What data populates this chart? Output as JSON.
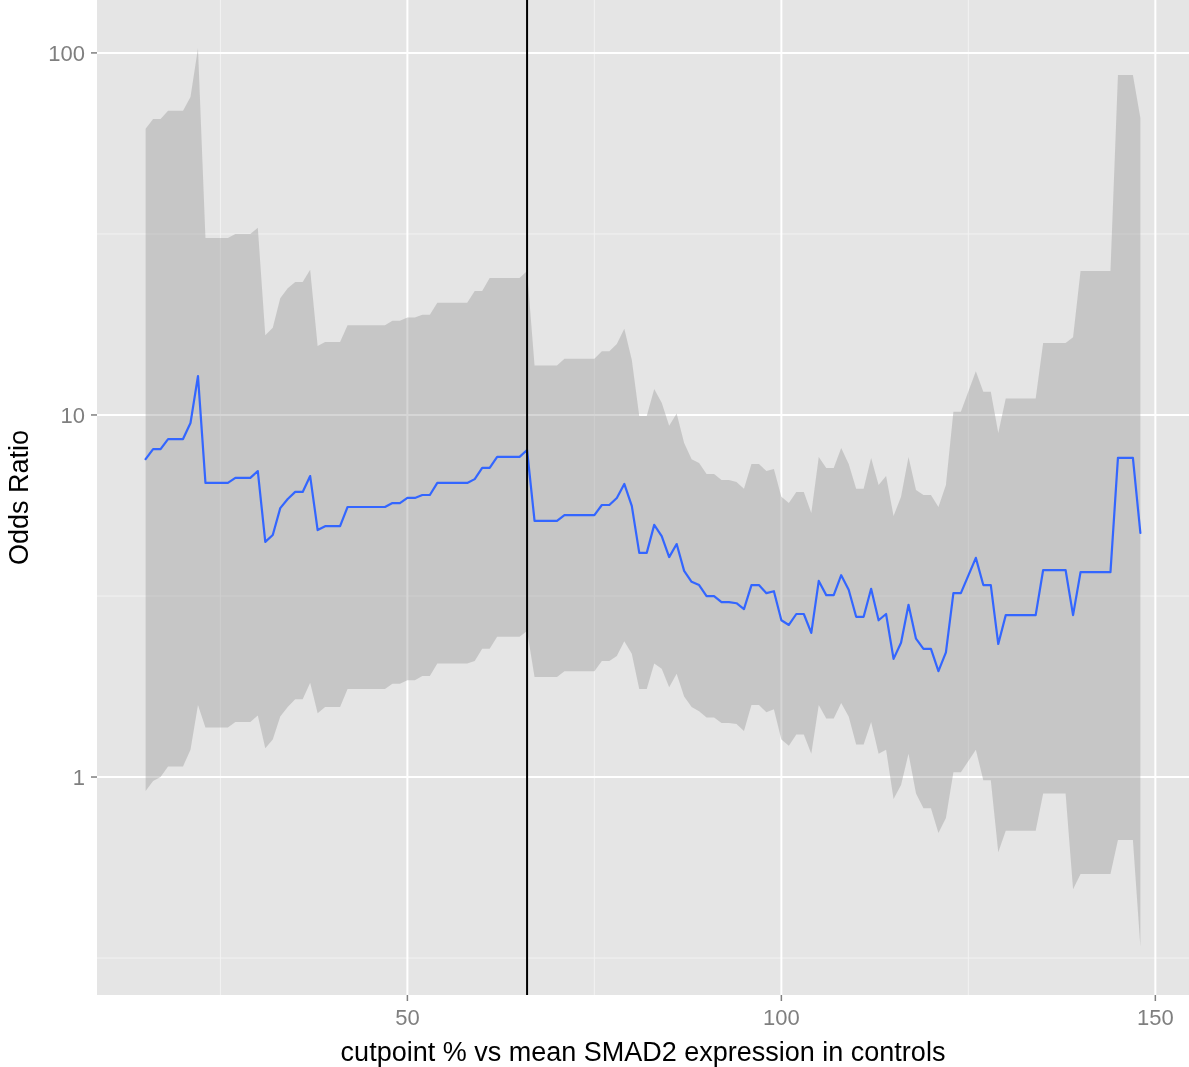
{
  "chart_data": {
    "type": "line",
    "xlabel": "cutpoint % vs mean SMAD2 expression in controls",
    "ylabel": "Odds Ratio",
    "x": [
      15,
      16,
      17,
      18,
      20,
      21,
      22,
      23,
      26,
      27,
      29,
      30,
      31,
      32,
      33,
      34,
      35,
      36,
      37,
      38,
      39,
      41,
      42,
      47,
      48,
      49,
      50,
      51,
      52,
      53,
      54,
      58,
      59,
      60,
      61,
      62,
      65,
      66,
      67,
      70,
      71,
      75,
      76,
      77,
      78,
      79,
      80,
      81,
      82,
      83,
      84,
      85,
      86,
      87,
      88,
      89,
      90,
      91,
      92,
      93,
      94,
      95,
      96,
      97,
      98,
      99,
      100,
      101,
      102,
      103,
      104,
      105,
      106,
      107,
      108,
      109,
      110,
      111,
      112,
      113,
      114,
      115,
      116,
      117,
      118,
      119,
      120,
      121,
      122,
      123,
      124,
      126,
      127,
      128,
      129,
      130,
      134,
      135,
      138,
      139,
      140,
      144,
      145,
      147,
      148
    ],
    "series": [
      {
        "color": "#3366ff",
        "values": [
          7.55,
          8.05,
          8.05,
          8.58,
          8.58,
          9.5,
          12.8,
          6.49,
          6.49,
          6.7,
          6.7,
          7.0,
          4.46,
          4.66,
          5.53,
          5.86,
          6.13,
          6.13,
          6.78,
          4.81,
          4.93,
          4.93,
          5.57,
          5.57,
          5.71,
          5.71,
          5.9,
          5.9,
          6.01,
          6.01,
          6.49,
          6.49,
          6.65,
          7.14,
          7.14,
          7.66,
          7.66,
          8.0,
          5.1,
          5.1,
          5.29,
          5.29,
          5.64,
          5.64,
          5.9,
          6.45,
          5.61,
          4.16,
          4.16,
          4.97,
          4.63,
          4.05,
          4.4,
          3.71,
          3.46,
          3.39,
          3.16,
          3.16,
          3.04,
          3.04,
          3.02,
          2.91,
          3.39,
          3.39,
          3.22,
          3.26,
          2.71,
          2.63,
          2.82,
          2.82,
          2.5,
          3.48,
          3.18,
          3.18,
          3.61,
          3.29,
          2.77,
          2.77,
          3.31,
          2.71,
          2.82,
          2.12,
          2.35,
          2.99,
          2.41,
          2.26,
          2.26,
          1.96,
          2.21,
          3.22,
          3.22,
          4.03,
          3.39,
          3.39,
          2.33,
          2.8,
          2.8,
          3.73,
          3.73,
          2.8,
          3.68,
          3.68,
          7.61,
          7.61,
          4.72
        ],
        "upper": [
          61.7,
          65.7,
          65.7,
          69.2,
          69.2,
          75.6,
          103,
          30.8,
          30.8,
          31.6,
          31.6,
          32.9,
          16.6,
          17.4,
          21.0,
          22.4,
          23.3,
          23.3,
          25.2,
          15.5,
          15.9,
          15.9,
          17.7,
          17.7,
          18.2,
          18.2,
          18.6,
          18.6,
          18.9,
          18.9,
          20.4,
          20.4,
          22.0,
          22.0,
          23.9,
          23.9,
          23.9,
          25.0,
          13.7,
          13.7,
          14.3,
          14.3,
          15.0,
          15.0,
          15.7,
          17.3,
          14.2,
          9.94,
          9.94,
          11.8,
          10.8,
          9.33,
          10.1,
          8.37,
          7.55,
          7.37,
          6.87,
          6.87,
          6.61,
          6.61,
          6.53,
          6.25,
          7.32,
          7.32,
          7.0,
          7.09,
          5.94,
          5.71,
          6.13,
          6.13,
          5.36,
          7.66,
          7.14,
          7.14,
          8.11,
          7.32,
          6.25,
          6.25,
          7.61,
          6.41,
          6.78,
          5.26,
          5.94,
          7.66,
          6.21,
          6.01,
          6.01,
          5.57,
          6.41,
          10.2,
          10.2,
          13.2,
          11.6,
          11.6,
          8.92,
          11.1,
          11.1,
          15.8,
          15.8,
          16.4,
          25.0,
          25.0,
          86.9,
          86.9,
          66.1
        ],
        "lower": [
          0.915,
          0.975,
          1.0,
          1.07,
          1.07,
          1.19,
          1.58,
          1.37,
          1.37,
          1.42,
          1.42,
          1.48,
          1.2,
          1.27,
          1.47,
          1.56,
          1.64,
          1.64,
          1.82,
          1.5,
          1.56,
          1.56,
          1.75,
          1.75,
          1.81,
          1.81,
          1.85,
          1.85,
          1.9,
          1.9,
          2.06,
          2.06,
          2.09,
          2.26,
          2.26,
          2.44,
          2.44,
          2.53,
          1.89,
          1.89,
          1.96,
          1.96,
          2.09,
          2.09,
          2.16,
          2.37,
          2.19,
          1.75,
          1.75,
          2.06,
          1.99,
          1.77,
          1.93,
          1.67,
          1.56,
          1.52,
          1.46,
          1.46,
          1.41,
          1.41,
          1.4,
          1.34,
          1.58,
          1.58,
          1.51,
          1.54,
          1.27,
          1.22,
          1.31,
          1.31,
          1.16,
          1.58,
          1.45,
          1.45,
          1.6,
          1.47,
          1.23,
          1.23,
          1.42,
          1.16,
          1.19,
          0.87,
          0.95,
          1.16,
          0.9,
          0.82,
          0.82,
          0.7,
          0.77,
          1.03,
          1.03,
          1.19,
          0.98,
          0.98,
          0.62,
          0.71,
          0.71,
          0.9,
          0.9,
          0.49,
          0.54,
          0.54,
          0.67,
          0.67,
          0.34
        ]
      }
    ],
    "xlim": [
      8.5,
      154.5
    ],
    "ylim": [
      0.25,
      140
    ],
    "xticks": [
      50,
      100,
      150
    ],
    "yticks": [
      1,
      10,
      100
    ],
    "log": true,
    "grid": true,
    "ref_lines": [
      {
        "axis": "x",
        "value": 66,
        "color": "#000000"
      }
    ]
  }
}
